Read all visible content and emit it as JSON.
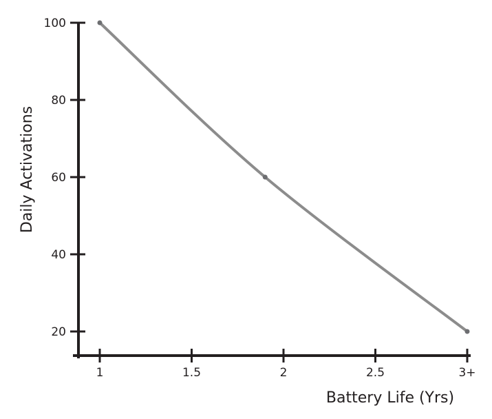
{
  "chart_data": {
    "type": "line",
    "title": "",
    "xlabel": "Battery Life (Yrs)",
    "ylabel": "Daily Activations",
    "x_ticks": [
      {
        "value": 1,
        "label": "1"
      },
      {
        "value": 1.5,
        "label": "1.5"
      },
      {
        "value": 2,
        "label": "2"
      },
      {
        "value": 2.5,
        "label": "2.5"
      },
      {
        "value": 3,
        "label": "3+"
      }
    ],
    "y_ticks": [
      {
        "value": 20,
        "label": "20"
      },
      {
        "value": 40,
        "label": "40"
      },
      {
        "value": 60,
        "label": "60"
      },
      {
        "value": 80,
        "label": "80"
      },
      {
        "value": 100,
        "label": "100"
      }
    ],
    "xlim": [
      0.9,
      3.0
    ],
    "ylim": [
      15,
      100
    ],
    "grid": false,
    "series": [
      {
        "points": [
          {
            "x": 1.0,
            "y": 100
          },
          {
            "x": 1.9,
            "y": 60
          },
          {
            "x": 3.0,
            "y": 20
          }
        ]
      }
    ],
    "colors": {
      "axis": "#231f20",
      "line": "#8c8c8c",
      "marker": "#6d6e71"
    }
  }
}
